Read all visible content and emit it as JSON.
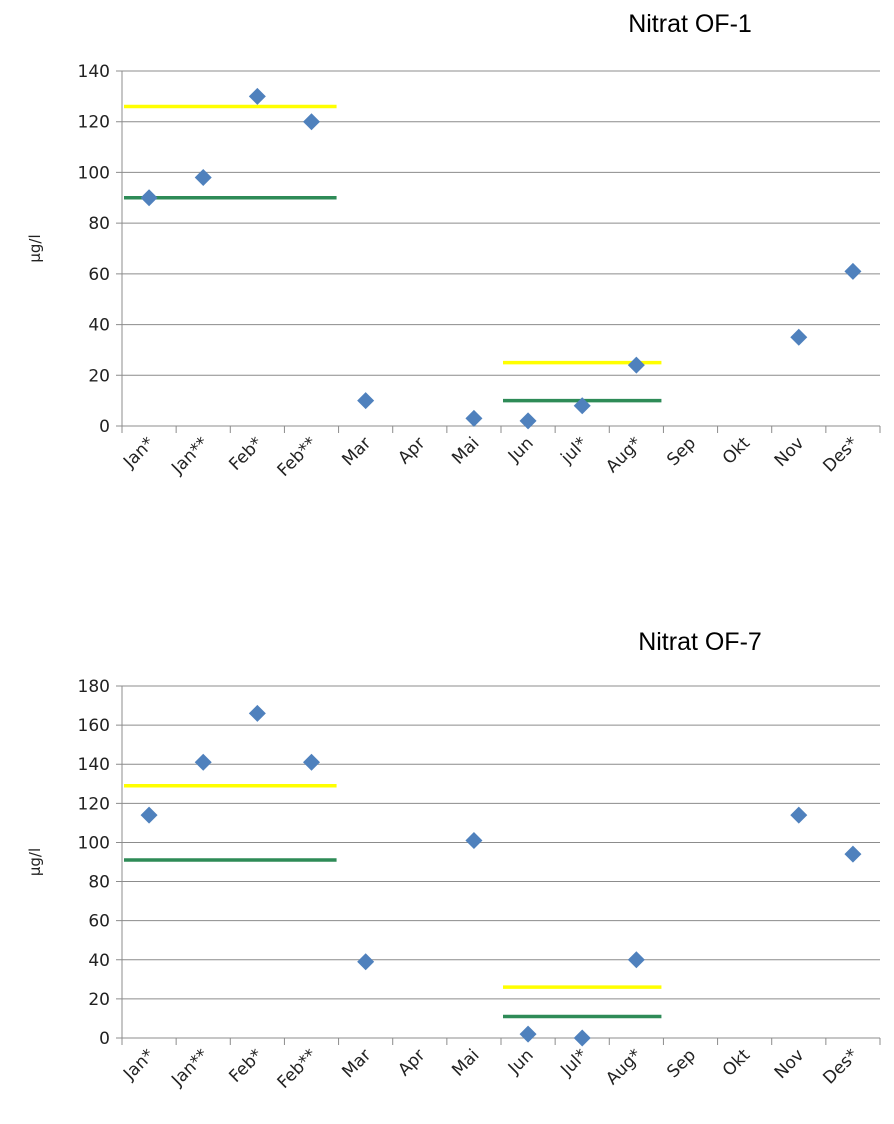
{
  "colors": {
    "marker": "#4f81bd",
    "grid": "#8c8c8c",
    "yellow": "#ffff00",
    "green": "#2e8b57"
  },
  "chart_data": [
    {
      "type": "scatter",
      "title": "Nitrat OF-1",
      "ylabel": "µg/l",
      "xlabel": "",
      "categories": [
        "Jan*",
        "Jan**",
        "Feb*",
        "Feb**",
        "Mar",
        "Apr",
        "Mai",
        "Jun",
        "jul*",
        "Aug*",
        "Sep",
        "Okt",
        "Nov",
        "Des*"
      ],
      "values": [
        90,
        98,
        130,
        120,
        10,
        null,
        3,
        2,
        8,
        24,
        null,
        null,
        35,
        61
      ],
      "ylim": [
        0,
        140
      ],
      "yticks": [
        0,
        20,
        40,
        60,
        80,
        100,
        120,
        140
      ],
      "grid": true,
      "reference_lines": [
        {
          "color": "yellow",
          "value": 126,
          "from_category": 0,
          "to_category": 3
        },
        {
          "color": "green",
          "value": 90,
          "from_category": 0,
          "to_category": 3
        },
        {
          "color": "yellow",
          "value": 25,
          "from_category": 7,
          "to_category": 9
        },
        {
          "color": "green",
          "value": 10,
          "from_category": 7,
          "to_category": 9
        }
      ]
    },
    {
      "type": "scatter",
      "title": "Nitrat OF-7",
      "ylabel": "µg/l",
      "xlabel": "",
      "categories": [
        "Jan*",
        "Jan**",
        "Feb*",
        "Feb**",
        "Mar",
        "Apr",
        "Mai",
        "Jun",
        "Jul*",
        "Aug*",
        "Sep",
        "Okt",
        "Nov",
        "Des*"
      ],
      "values": [
        114,
        141,
        166,
        141,
        39,
        null,
        101,
        2,
        0,
        40,
        null,
        null,
        114,
        94
      ],
      "ylim": [
        0,
        180
      ],
      "yticks": [
        0,
        20,
        40,
        60,
        80,
        100,
        120,
        140,
        160,
        180
      ],
      "grid": true,
      "reference_lines": [
        {
          "color": "yellow",
          "value": 129,
          "from_category": 0,
          "to_category": 3
        },
        {
          "color": "green",
          "value": 91,
          "from_category": 0,
          "to_category": 3
        },
        {
          "color": "yellow",
          "value": 26,
          "from_category": 7,
          "to_category": 9
        },
        {
          "color": "green",
          "value": 11,
          "from_category": 7,
          "to_category": 9
        }
      ]
    }
  ]
}
